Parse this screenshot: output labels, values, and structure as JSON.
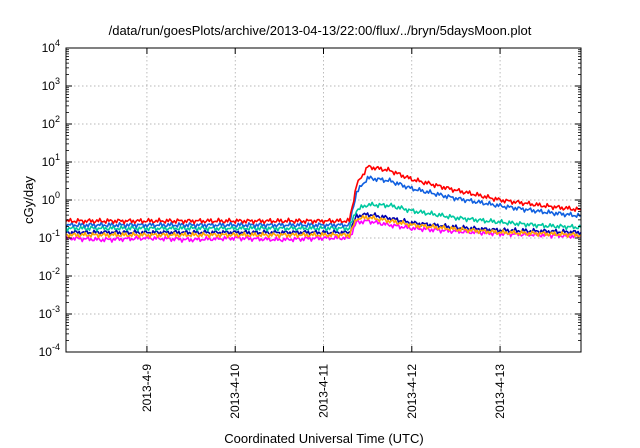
{
  "chart_data": {
    "type": "line",
    "title": "/data/run/goesPlots/archive/2013-04-13/22:00/flux/../bryn/5daysMoon.plot",
    "xlabel": "Coordinated Universal Time (UTC)",
    "ylabel": "cGy/day",
    "yscale": "log",
    "ylim": [
      0.0001,
      10000
    ],
    "xlim": [
      "2013-04-08 02:00",
      "2013-04-13 22:00"
    ],
    "grid": true,
    "y_ticks": [
      {
        "base": "10",
        "exp": "-4"
      },
      {
        "base": "10",
        "exp": "-3"
      },
      {
        "base": "10",
        "exp": "-2"
      },
      {
        "base": "10",
        "exp": "-1"
      },
      {
        "base": "10",
        "exp": "0"
      },
      {
        "base": "10",
        "exp": "1"
      },
      {
        "base": "10",
        "exp": "2"
      },
      {
        "base": "10",
        "exp": "3"
      },
      {
        "base": "10",
        "exp": "4"
      }
    ],
    "x_ticks": [
      "2013-4-9",
      "2013-4-10",
      "2013-4-11",
      "2013-4-12",
      "2013-4-13"
    ],
    "series": [
      {
        "color": "#ff00ff",
        "x": [
          "2013-04-08 02:00",
          "2013-04-08 12:00",
          "2013-04-09 00:00",
          "2013-04-09 12:00",
          "2013-04-10 00:00",
          "2013-04-10 12:00",
          "2013-04-11 00:00",
          "2013-04-11 07:00",
          "2013-04-11 09:00",
          "2013-04-11 12:00",
          "2013-04-11 18:00",
          "2013-04-12 00:00",
          "2013-04-12 12:00",
          "2013-04-13 00:00",
          "2013-04-13 12:00",
          "2013-04-13 22:00"
        ],
        "y": [
          0.1,
          0.09,
          0.1,
          0.09,
          0.1,
          0.09,
          0.1,
          0.1,
          0.26,
          0.28,
          0.22,
          0.18,
          0.15,
          0.13,
          0.12,
          0.11
        ]
      },
      {
        "color": "#0000b0",
        "x": [
          "2013-04-08 02:00",
          "2013-04-08 12:00",
          "2013-04-09 00:00",
          "2013-04-09 12:00",
          "2013-04-10 00:00",
          "2013-04-10 12:00",
          "2013-04-11 00:00",
          "2013-04-11 07:00",
          "2013-04-11 09:00",
          "2013-04-11 12:00",
          "2013-04-11 18:00",
          "2013-04-12 00:00",
          "2013-04-12 12:00",
          "2013-04-13 00:00",
          "2013-04-13 12:00",
          "2013-04-13 22:00"
        ],
        "y": [
          0.14,
          0.14,
          0.14,
          0.14,
          0.14,
          0.14,
          0.14,
          0.14,
          0.38,
          0.42,
          0.33,
          0.25,
          0.19,
          0.16,
          0.15,
          0.14
        ]
      },
      {
        "color": "#ffa500",
        "x": [
          "2013-04-08 02:00",
          "2013-04-08 12:00",
          "2013-04-09 00:00",
          "2013-04-09 12:00",
          "2013-04-10 00:00",
          "2013-04-10 12:00",
          "2013-04-11 00:00",
          "2013-04-11 07:00",
          "2013-04-11 09:00",
          "2013-04-11 12:00",
          "2013-04-11 18:00",
          "2013-04-12 00:00",
          "2013-04-12 12:00",
          "2013-04-13 00:00",
          "2013-04-13 12:00",
          "2013-04-13 22:00"
        ],
        "y": [
          0.12,
          0.12,
          0.12,
          0.12,
          0.12,
          0.12,
          0.12,
          0.12,
          0.32,
          0.35,
          0.28,
          0.22,
          0.17,
          0.14,
          0.13,
          0.12
        ]
      },
      {
        "color": "#00c8a0",
        "x": [
          "2013-04-08 02:00",
          "2013-04-08 12:00",
          "2013-04-09 00:00",
          "2013-04-09 12:00",
          "2013-04-10 00:00",
          "2013-04-10 12:00",
          "2013-04-11 00:00",
          "2013-04-11 07:00",
          "2013-04-11 09:00",
          "2013-04-11 12:00",
          "2013-04-11 18:00",
          "2013-04-12 00:00",
          "2013-04-12 12:00",
          "2013-04-13 00:00",
          "2013-04-13 12:00",
          "2013-04-13 22:00"
        ],
        "y": [
          0.18,
          0.18,
          0.18,
          0.18,
          0.18,
          0.18,
          0.18,
          0.18,
          0.55,
          0.75,
          0.72,
          0.52,
          0.34,
          0.26,
          0.21,
          0.19
        ]
      },
      {
        "color": "#1060e0",
        "x": [
          "2013-04-08 02:00",
          "2013-04-08 12:00",
          "2013-04-09 00:00",
          "2013-04-09 12:00",
          "2013-04-10 00:00",
          "2013-04-10 12:00",
          "2013-04-11 00:00",
          "2013-04-11 07:00",
          "2013-04-11 09:00",
          "2013-04-11 12:00",
          "2013-04-11 18:00",
          "2013-04-12 00:00",
          "2013-04-12 12:00",
          "2013-04-13 00:00",
          "2013-04-13 12:00",
          "2013-04-13 22:00"
        ],
        "y": [
          0.22,
          0.22,
          0.22,
          0.22,
          0.22,
          0.22,
          0.22,
          0.22,
          1.6,
          3.8,
          3.2,
          2.0,
          1.1,
          0.7,
          0.48,
          0.38
        ]
      },
      {
        "color": "#ff0000",
        "x": [
          "2013-04-08 02:00",
          "2013-04-08 12:00",
          "2013-04-09 00:00",
          "2013-04-09 12:00",
          "2013-04-10 00:00",
          "2013-04-10 12:00",
          "2013-04-11 00:00",
          "2013-04-11 07:00",
          "2013-04-11 09:00",
          "2013-04-11 12:00",
          "2013-04-11 18:00",
          "2013-04-12 00:00",
          "2013-04-12 12:00",
          "2013-04-13 00:00",
          "2013-04-13 12:00",
          "2013-04-13 22:00"
        ],
        "y": [
          0.28,
          0.28,
          0.28,
          0.28,
          0.28,
          0.28,
          0.28,
          0.28,
          2.5,
          7.5,
          6.0,
          3.5,
          1.8,
          1.0,
          0.7,
          0.55
        ]
      }
    ]
  }
}
